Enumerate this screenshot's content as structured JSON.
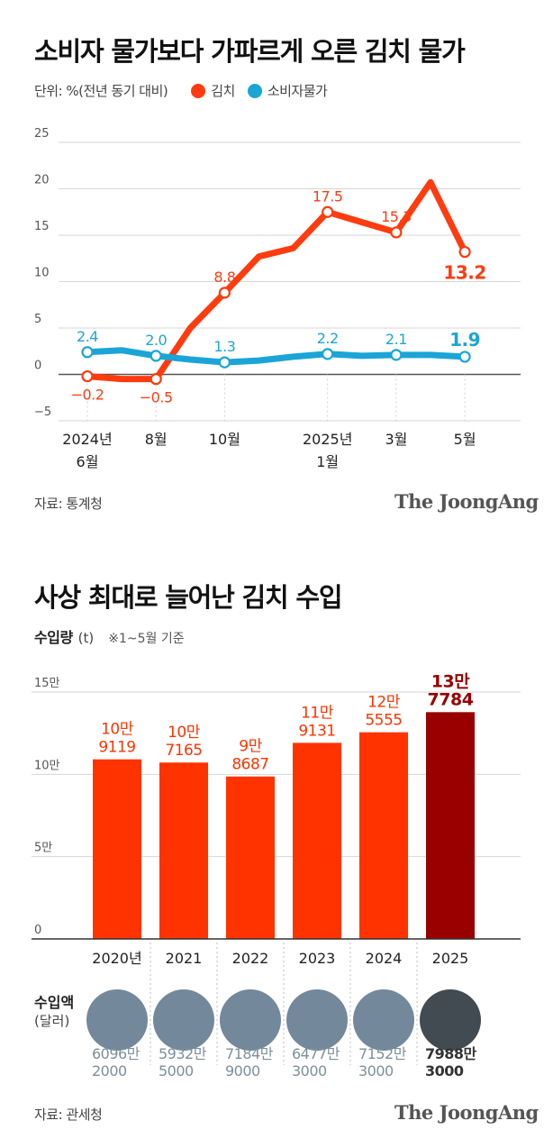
{
  "chart_data": [
    {
      "type": "line",
      "title": "소비자 물가보다 가파르게 오른 김치 물가",
      "unit_label": "단위: %(전년 동기 대비)",
      "ylim": [
        -5,
        25
      ],
      "yticks": [
        "25",
        "20",
        "15",
        "10",
        "5",
        "0",
        "−5"
      ],
      "ytick_values": [
        25,
        20,
        15,
        10,
        5,
        0,
        -5
      ],
      "x": [
        "2024-06",
        "2024-07",
        "2024-08",
        "2024-09",
        "2024-10",
        "2024-11",
        "2024-12",
        "2025-01",
        "2025-02",
        "2025-03",
        "2025-04",
        "2025-05"
      ],
      "xtick_labels": [
        {
          "index": 0,
          "lines": [
            "2024년",
            "6월"
          ]
        },
        {
          "index": 2,
          "lines": [
            "8월"
          ]
        },
        {
          "index": 4,
          "lines": [
            "10월"
          ]
        },
        {
          "index": 7,
          "lines": [
            "2025년",
            "1월"
          ]
        },
        {
          "index": 9,
          "lines": [
            "3월"
          ]
        },
        {
          "index": 11,
          "lines": [
            "5월"
          ]
        }
      ],
      "grid": true,
      "legend_position": "top-left",
      "series": [
        {
          "name": "김치",
          "color": "#ff3b0f",
          "values": [
            -0.2,
            -0.5,
            -0.5,
            5.0,
            8.8,
            12.7,
            13.6,
            17.5,
            16.4,
            15.3,
            20.7,
            13.2
          ],
          "labels": [
            {
              "index": 0,
              "text": "−0.2"
            },
            {
              "index": 2,
              "text": "−0.5"
            },
            {
              "index": 4,
              "text": "8.8"
            },
            {
              "index": 7,
              "text": "17.5"
            },
            {
              "index": 9,
              "text": "15.3"
            },
            {
              "index": 11,
              "text": "13.2",
              "emphasis": true
            }
          ]
        },
        {
          "name": "소비자물가",
          "color": "#1aa5d6",
          "values": [
            2.4,
            2.6,
            2.0,
            1.6,
            1.3,
            1.5,
            1.9,
            2.2,
            2.0,
            2.1,
            2.1,
            1.9
          ],
          "labels": [
            {
              "index": 0,
              "text": "2.4"
            },
            {
              "index": 2,
              "text": "2.0"
            },
            {
              "index": 4,
              "text": "1.3"
            },
            {
              "index": 7,
              "text": "2.2"
            },
            {
              "index": 9,
              "text": "2.1"
            },
            {
              "index": 11,
              "text": "1.9",
              "emphasis": true
            }
          ]
        }
      ],
      "source": "자료: 통계청"
    },
    {
      "type": "bar",
      "title": "사상 최대로 늘어난 김치 수입",
      "ylabel": "수입량",
      "ylabel_unit": "(t)",
      "note": "※1~5월 기준",
      "ylim": [
        0,
        150000
      ],
      "yticks": [
        "15만",
        "10만",
        "5만",
        "0"
      ],
      "ytick_values": [
        150000,
        100000,
        50000,
        0
      ],
      "categories": [
        "2020년",
        "2021",
        "2022",
        "2023",
        "2024",
        "2025"
      ],
      "values": [
        109119,
        107165,
        98687,
        119131,
        125555,
        137784
      ],
      "value_labels": [
        [
          "10만",
          "9119"
        ],
        [
          "10만",
          "7165"
        ],
        [
          "9만",
          "8687"
        ],
        [
          "11만",
          "9131"
        ],
        [
          "12만",
          "5555"
        ],
        [
          "13만",
          "7784"
        ]
      ],
      "bar_color": "#ff3300",
      "highlight_color": "#990000",
      "highlight_index": 5,
      "grid": true,
      "import_value": {
        "label": "수입액",
        "unit": "(달러)",
        "circle_color": "#73889a",
        "highlight_circle_color": "#424a52",
        "values": [
          60962000,
          59325000,
          71849000,
          64773000,
          71523000,
          79883000
        ],
        "labels": [
          [
            "6096만",
            "2000"
          ],
          [
            "5932만",
            "5000"
          ],
          [
            "7184만",
            "9000"
          ],
          [
            "6477만",
            "3000"
          ],
          [
            "7152만",
            "3000"
          ],
          [
            "7988만",
            "3000"
          ]
        ]
      },
      "source": "자료: 관세청"
    }
  ],
  "brand": "The JoongAng"
}
